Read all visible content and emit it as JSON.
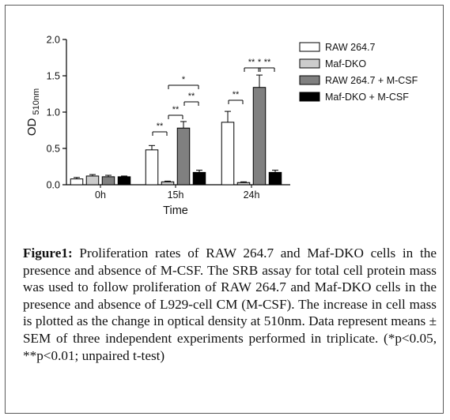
{
  "chart_data": {
    "type": "bar",
    "xlabel": "Time",
    "ylabel": "OD",
    "ylabel_sub": "510nm",
    "ylim": [
      0,
      2.0
    ],
    "yticks": [
      "0.0",
      "0.5",
      "1.0",
      "1.5",
      "2.0"
    ],
    "categories": [
      "0h",
      "15h",
      "24h"
    ],
    "series": [
      {
        "name": "RAW 264.7",
        "color": "#ffffff",
        "values": [
          0.08,
          0.48,
          0.86
        ],
        "errors": [
          0.02,
          0.06,
          0.15
        ]
      },
      {
        "name": "Maf-DKO",
        "color": "#cccccc",
        "values": [
          0.12,
          0.04,
          0.03
        ],
        "errors": [
          0.02,
          0.01,
          0.01
        ]
      },
      {
        "name": "RAW 264.7 + M-CSF",
        "color": "#808080",
        "values": [
          0.11,
          0.78,
          1.34
        ],
        "errors": [
          0.02,
          0.09,
          0.17
        ]
      },
      {
        "name": "Maf-DKO + M-CSF",
        "color": "#000000",
        "values": [
          0.11,
          0.17,
          0.17
        ],
        "errors": [
          0.01,
          0.03,
          0.03
        ]
      }
    ],
    "legend_position": "top-right",
    "significance": [
      {
        "group": 1,
        "from": 0,
        "to": 1,
        "label": "**",
        "level": 0
      },
      {
        "group": 1,
        "from": 1,
        "to": 2,
        "label": "**",
        "level": 1
      },
      {
        "group": 1,
        "from": 2,
        "to": 3,
        "label": "**",
        "level": 2
      },
      {
        "group": 1,
        "from": 1,
        "to": 3,
        "label": "*",
        "level": 3
      },
      {
        "group": 2,
        "from": 0,
        "to": 1,
        "label": "**",
        "level": 0
      },
      {
        "group": 2,
        "from": 1,
        "to": 2,
        "label": "**",
        "level": 1
      },
      {
        "group": 2,
        "from": 2,
        "to": 3,
        "label": "**",
        "level": 1
      },
      {
        "group": 2,
        "from": 1,
        "to": 3,
        "label": "*",
        "level": 2
      }
    ]
  },
  "caption": {
    "label": "Figure1:",
    "text": " Proliferation rates of RAW 264.7 and Maf-DKO cells in the presence and absence of M-CSF. The SRB assay for total cell protein mass was used to follow proliferation of RAW 264.7 and Maf-DKO cells in the presence and absence of L929-cell CM (M-CSF). The increase in cell mass is plotted as the change in optical density at 510nm. Data represent means ± SEM of three independent experiments performed in triplicate. (*p<0.05, **p<0.01; unpaired t-test)"
  }
}
